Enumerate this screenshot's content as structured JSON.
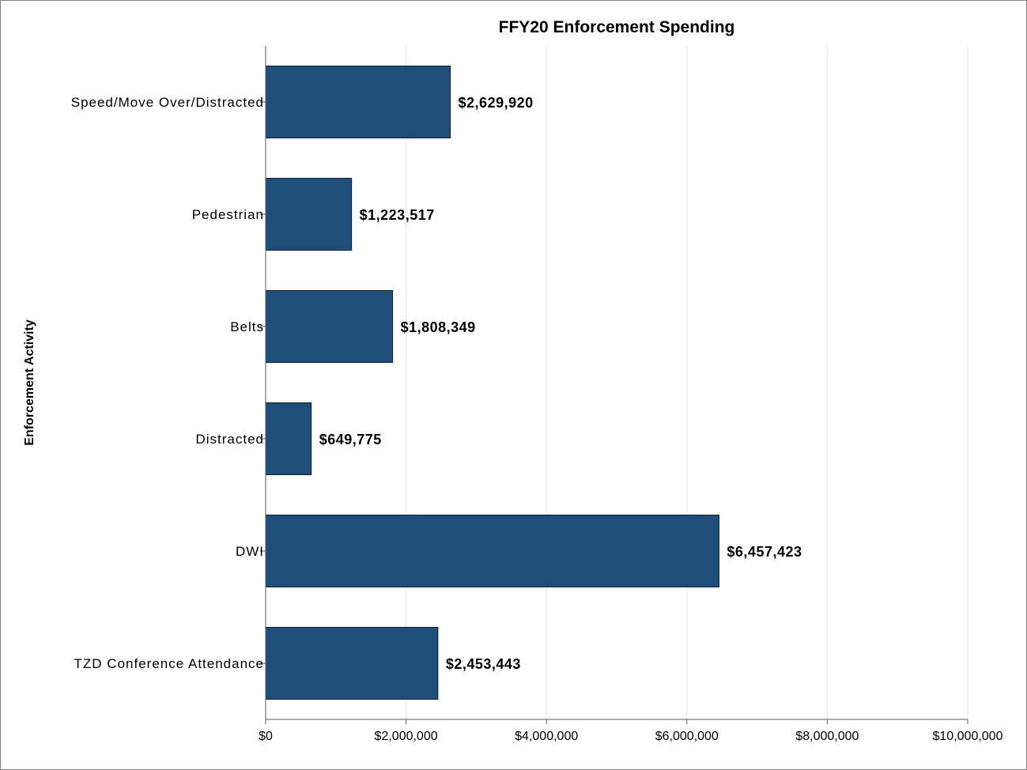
{
  "chart_data": {
    "type": "bar",
    "orientation": "horizontal",
    "title": "FFY20 Enforcement Spending",
    "xlabel": "",
    "ylabel": "Enforcement Activity",
    "categories": [
      "Speed/Move Over/Distracted",
      "Pedestrian",
      "Belts",
      "Distracted",
      "DWI",
      "TZD Conference Attendance"
    ],
    "values": [
      2629920,
      1223517,
      1808349,
      649775,
      6457423,
      2453443
    ],
    "data_labels": [
      "$2,629,920",
      "$1,223,517",
      "$1,808,349",
      "$649,775",
      "$6,457,423",
      "$2,453,443"
    ],
    "xlim": [
      0,
      10000000
    ],
    "x_ticks": [
      0,
      2000000,
      4000000,
      6000000,
      8000000,
      10000000
    ],
    "x_tick_labels": [
      "$0",
      "$2,000,000",
      "$4,000,000",
      "$6,000,000",
      "$8,000,000",
      "$10,000,000"
    ],
    "grid": "vertical",
    "legend": "none",
    "colors": {
      "bar": "#1f4e79",
      "bar_edge": "#0d1f33",
      "grid": "#e6e6e6",
      "axis": "#595959"
    }
  }
}
